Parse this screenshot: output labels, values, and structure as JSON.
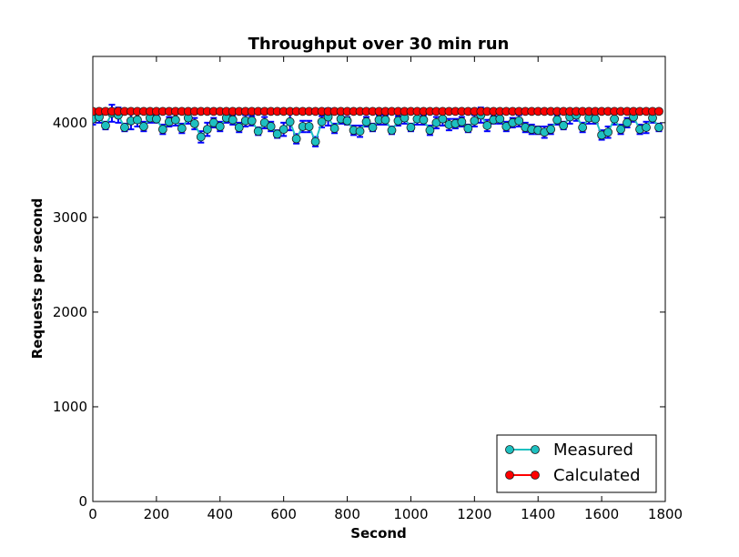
{
  "chart_data": {
    "type": "line",
    "title": "Throughput over 30 min run",
    "xlabel": "Second",
    "ylabel": "Requests per second",
    "xlim": [
      0,
      1800
    ],
    "ylim": [
      0,
      4700
    ],
    "xticks": [
      0,
      200,
      400,
      600,
      800,
      1000,
      1200,
      1400,
      1600,
      1800
    ],
    "yticks": [
      0,
      1000,
      2000,
      3000,
      4000
    ],
    "grid": false,
    "legend": "bottom-right",
    "x": [
      0,
      20,
      40,
      60,
      80,
      100,
      120,
      140,
      160,
      180,
      200,
      220,
      240,
      260,
      280,
      300,
      320,
      340,
      360,
      380,
      400,
      420,
      440,
      460,
      480,
      500,
      520,
      540,
      560,
      580,
      600,
      620,
      640,
      660,
      680,
      700,
      720,
      740,
      760,
      780,
      800,
      820,
      840,
      860,
      880,
      900,
      920,
      940,
      960,
      980,
      1000,
      1020,
      1040,
      1060,
      1080,
      1100,
      1120,
      1140,
      1160,
      1180,
      1200,
      1220,
      1240,
      1260,
      1280,
      1300,
      1320,
      1340,
      1360,
      1380,
      1400,
      1420,
      1440,
      1460,
      1480,
      1500,
      1520,
      1540,
      1560,
      1580,
      1600,
      1620,
      1640,
      1660,
      1680,
      1700,
      1720,
      1740,
      1760,
      1780
    ],
    "series": [
      {
        "name": "Measured",
        "color": "#1ec0c0",
        "error_color": "#0000ff",
        "values": [
          4040,
          4060,
          3970,
          4100,
          4080,
          3950,
          4020,
          4030,
          3960,
          4050,
          4040,
          3930,
          4010,
          4030,
          3940,
          4050,
          3990,
          3850,
          3930,
          4000,
          3960,
          4050,
          4030,
          3950,
          4020,
          4020,
          3910,
          4000,
          3960,
          3880,
          3930,
          4010,
          3830,
          3960,
          3960,
          3800,
          4010,
          4060,
          3940,
          4040,
          4020,
          3920,
          3910,
          4010,
          3950,
          4030,
          4030,
          3920,
          4020,
          4050,
          3950,
          4040,
          4030,
          3920,
          4000,
          4040,
          3980,
          3990,
          4010,
          3940,
          4020,
          4080,
          3970,
          4030,
          4040,
          3960,
          4000,
          4020,
          3950,
          3930,
          3920,
          3900,
          3930,
          4030,
          3970,
          4060,
          4080,
          3950,
          4050,
          4040,
          3870,
          3900,
          4040,
          3930,
          4000,
          4060,
          3930,
          3950,
          4050,
          3950
        ],
        "errors": [
          60,
          60,
          40,
          90,
          80,
          40,
          90,
          70,
          50,
          50,
          40,
          50,
          50,
          60,
          50,
          60,
          60,
          60,
          70,
          50,
          50,
          50,
          50,
          50,
          60,
          50,
          40,
          60,
          50,
          40,
          70,
          90,
          50,
          60,
          60,
          50,
          60,
          90,
          50,
          50,
          40,
          50,
          60,
          50,
          40,
          50,
          50,
          40,
          50,
          60,
          40,
          60,
          50,
          50,
          60,
          70,
          60,
          50,
          50,
          40,
          60,
          80,
          60,
          40,
          50,
          50,
          50,
          60,
          50,
          50,
          40,
          60,
          50,
          50,
          40,
          70,
          60,
          50,
          60,
          50,
          50,
          60,
          60,
          50,
          50,
          50,
          50,
          60,
          50,
          40
        ]
      },
      {
        "name": "Calculated",
        "color": "#ff0000",
        "values": [
          4120,
          4120,
          4120,
          4120,
          4120,
          4120,
          4120,
          4120,
          4120,
          4120,
          4120,
          4120,
          4120,
          4120,
          4120,
          4120,
          4120,
          4120,
          4120,
          4120,
          4120,
          4120,
          4120,
          4120,
          4120,
          4120,
          4120,
          4120,
          4120,
          4120,
          4120,
          4120,
          4120,
          4120,
          4120,
          4120,
          4120,
          4120,
          4120,
          4120,
          4120,
          4120,
          4120,
          4120,
          4120,
          4120,
          4120,
          4120,
          4120,
          4120,
          4120,
          4120,
          4120,
          4120,
          4120,
          4120,
          4120,
          4120,
          4120,
          4120,
          4120,
          4120,
          4120,
          4120,
          4120,
          4120,
          4120,
          4120,
          4120,
          4120,
          4120,
          4120,
          4120,
          4120,
          4120,
          4120,
          4120,
          4120,
          4120,
          4120,
          4120,
          4120,
          4120,
          4120,
          4120,
          4120,
          4120,
          4120,
          4120,
          4120
        ]
      }
    ]
  }
}
